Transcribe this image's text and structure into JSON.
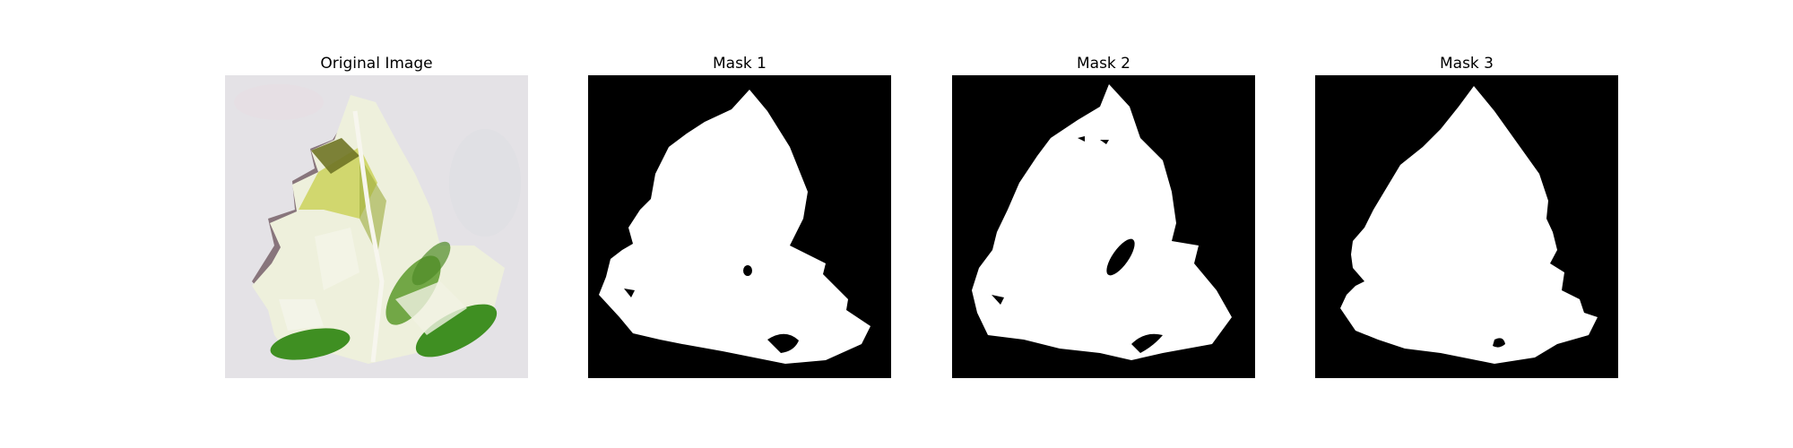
{
  "figure": {
    "panels": [
      {
        "title": "Original Image",
        "kind": "photo"
      },
      {
        "title": "Mask 1",
        "kind": "mask"
      },
      {
        "title": "Mask 2",
        "kind": "mask"
      },
      {
        "title": "Mask 3",
        "kind": "mask"
      }
    ]
  },
  "colors": {
    "mask_background": "#000000",
    "mask_foreground": "#ffffff",
    "photo_background": "#e4e2e6",
    "leaf_light": "#eef0dc",
    "leaf_green": "#3f8f22",
    "leaf_yellow": "#cbd25a",
    "leaf_olive": "#6f7425",
    "shadow": "#6a5058"
  }
}
